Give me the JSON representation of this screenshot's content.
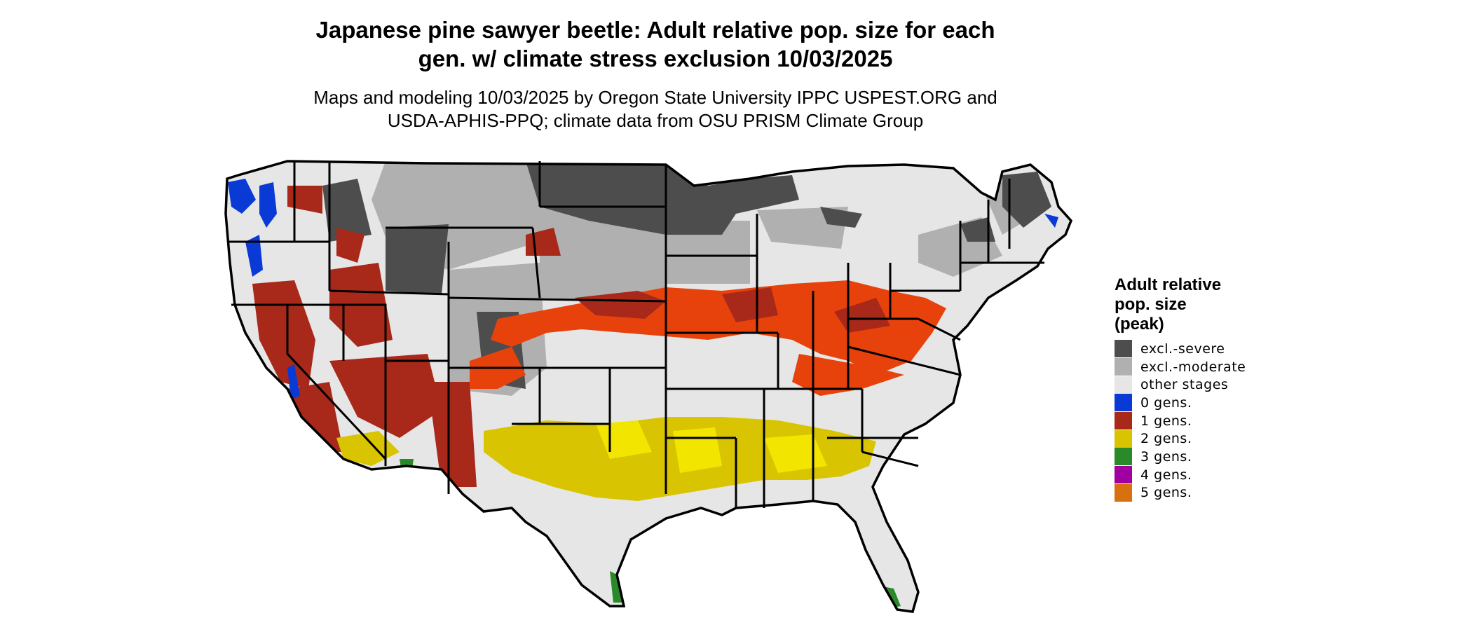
{
  "title": {
    "line1": "Japanese pine sawyer beetle: Adult relative pop. size for each",
    "line2": "gen. w/ climate stress exclusion 10/03/2025"
  },
  "subtitle": {
    "line1": "Maps and modeling 10/03/2025 by Oregon State University IPPC USPEST.ORG and",
    "line2": "USDA-APHIS-PPQ; climate data from OSU PRISM Climate Group"
  },
  "legend": {
    "title_line1": "Adult relative",
    "title_line2": "pop. size",
    "title_line3": "(peak)",
    "items": [
      {
        "label": "excl.-severe",
        "color": "#4d4d4d"
      },
      {
        "label": "excl.-moderate",
        "color": "#b0b0b0"
      },
      {
        "label": "other stages",
        "color": "#e6e6e6"
      },
      {
        "label": "0 gens.",
        "color": "#0a3ad6"
      },
      {
        "label": "1 gens.",
        "color": "#a8281a"
      },
      {
        "label": "2 gens.",
        "color": "#d8c400"
      },
      {
        "label": "3 gens.",
        "color": "#2a8a2a"
      },
      {
        "label": "4 gens.",
        "color": "#a000a0"
      },
      {
        "label": "5 gens.",
        "color": "#d87010"
      }
    ]
  },
  "map_colors": {
    "land": "#e6e6e6",
    "severe": "#4d4d4d",
    "moderate": "#b0b0b0",
    "one_gen_dark": "#a8281a",
    "one_gen_bright": "#e8420c",
    "two_gen": "#d8c400",
    "two_gen_bright": "#f2e600",
    "zero_gen": "#0a3ad6",
    "three_gen": "#2a8a2a",
    "border": "#000000"
  }
}
